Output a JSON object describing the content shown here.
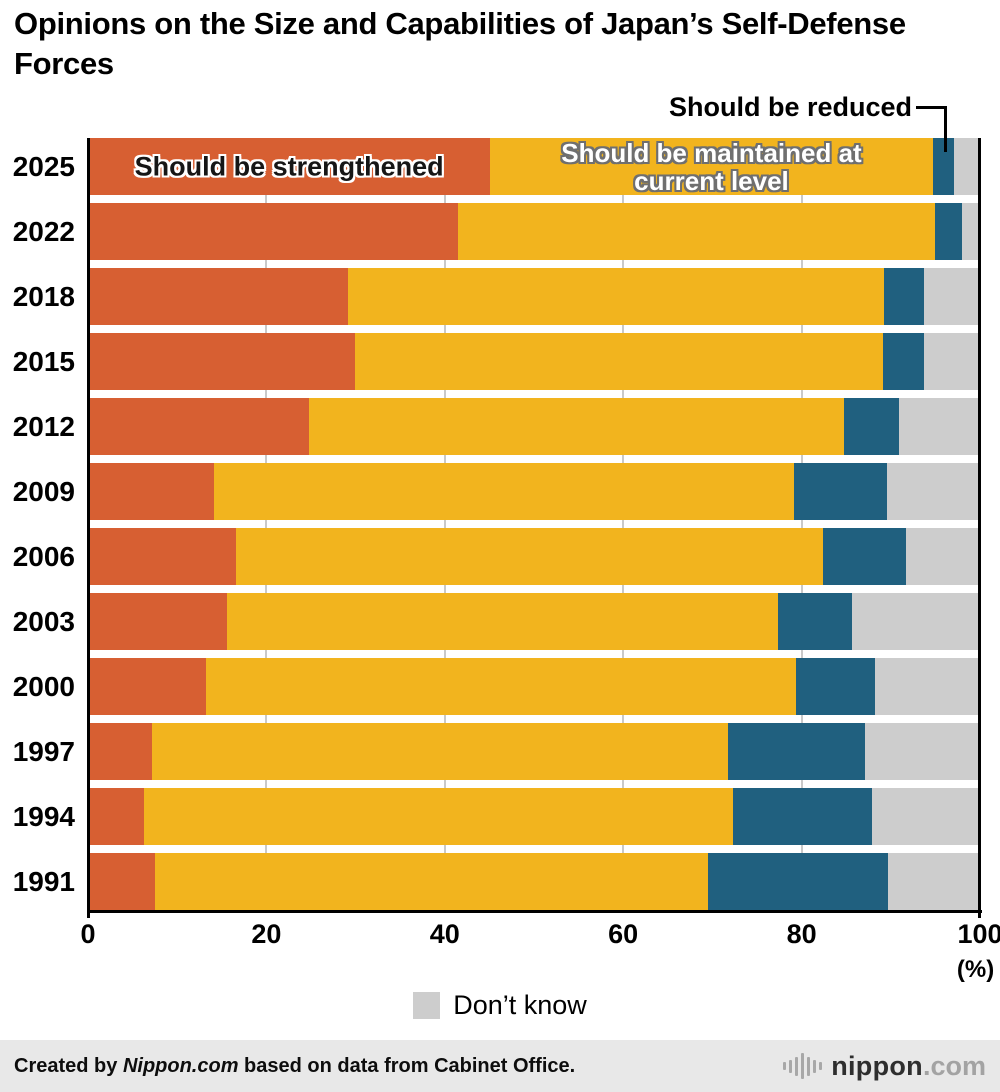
{
  "title": "Opinions on the Size and Capabilities of Japan’s Self-Defense Forces",
  "annotations": {
    "reduced_label": "Should be reduced"
  },
  "legend": {
    "dont_know": "Don’t know"
  },
  "footer": {
    "credit_prefix": "Created by ",
    "credit_brand": "Nippon.com",
    "credit_suffix": " based on data from Cabinet Office.",
    "logo_name": "nippon",
    "logo_tld": ".com"
  },
  "chart_data": {
    "type": "bar",
    "orientation": "horizontal",
    "stacked": true,
    "title": "Opinions on the Size and Capabilities of Japan’s Self-Defense Forces",
    "categories": [
      "2025",
      "2022",
      "2018",
      "2015",
      "2012",
      "2009",
      "2006",
      "2003",
      "2000",
      "1997",
      "1994",
      "1991"
    ],
    "series": [
      {
        "name": "Should be strengthened",
        "color": "#d75f32",
        "values": [
          45.1,
          41.5,
          29.1,
          29.9,
          24.8,
          14.1,
          16.6,
          15.6,
          13.2,
          7.2,
          6.3,
          7.5
        ]
      },
      {
        "name": "Should be maintained at current level",
        "color": "#f2b41e",
        "values": [
          49.6,
          53.5,
          60.1,
          59.2,
          60.0,
          65.1,
          65.8,
          61.8,
          66.2,
          64.5,
          66.0,
          62.0
        ]
      },
      {
        "name": "Should be reduced",
        "color": "#20607f",
        "values": [
          2.4,
          3.0,
          4.5,
          4.6,
          6.1,
          10.4,
          9.3,
          8.2,
          8.8,
          15.4,
          15.6,
          20.2
        ]
      },
      {
        "name": "Don’t know",
        "color": "#cdcdcd",
        "values": [
          2.9,
          2.0,
          6.3,
          6.3,
          9.1,
          10.4,
          8.3,
          14.4,
          11.8,
          12.9,
          12.1,
          10.3
        ]
      }
    ],
    "xlim": [
      0,
      100
    ],
    "x_ticks": [
      0,
      20,
      40,
      60,
      80,
      100
    ],
    "x_unit": "(%)",
    "grid": "vertical at 20/40/60/80",
    "legend_position": "bottom"
  }
}
